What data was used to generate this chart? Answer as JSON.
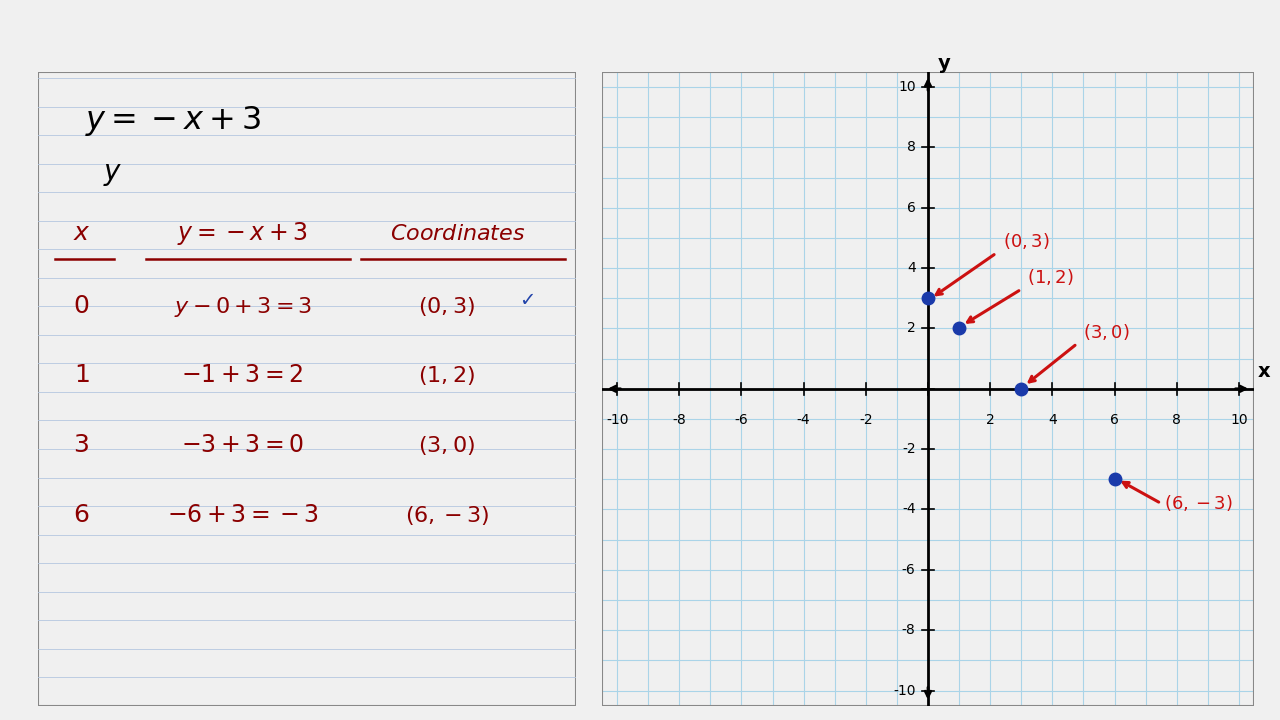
{
  "equation": "y = -x + 3",
  "points": [
    [
      0,
      3
    ],
    [
      1,
      2
    ],
    [
      3,
      0
    ],
    [
      6,
      -3
    ]
  ],
  "point_labels": [
    "(0,3)",
    "(1,2)",
    "(3,0)",
    "(6,-3)"
  ],
  "axis_range": [
    -10,
    10
  ],
  "grid_color": "#aad4e8",
  "point_color": "#1a3aaa",
  "annotation_color": "#cc1111",
  "text_color": "#8b0000",
  "line_color": "#b0c4de",
  "bg_color": "#f0f0f0"
}
